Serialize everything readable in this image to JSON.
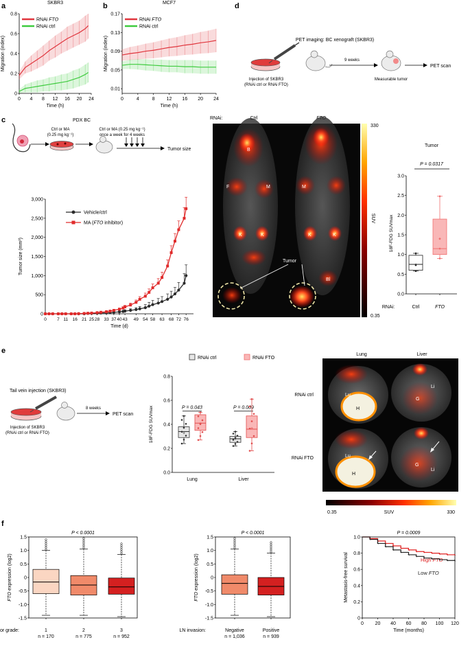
{
  "panels": {
    "a": {
      "letter": "a",
      "chart_data": {
        "type": "line",
        "title": "SKBR3",
        "xlabel": "Time (h)",
        "ylabel": "Migration (index)",
        "xlim": [
          0,
          24
        ],
        "ylim": [
          0,
          0.8
        ],
        "xticks": [
          0,
          4,
          8,
          12,
          16,
          20,
          24
        ],
        "yticks": [
          0,
          0.2,
          0.4,
          0.6,
          0.8
        ],
        "x": [
          0,
          2,
          4,
          6,
          8,
          10,
          12,
          14,
          16,
          18,
          20,
          22,
          23
        ],
        "series": [
          {
            "name": "RNAi FTO",
            "color": "#e0353d",
            "values": [
              0.18,
              0.26,
              0.3,
              0.34,
              0.38,
              0.43,
              0.47,
              0.51,
              0.55,
              0.58,
              0.61,
              0.65,
              0.68
            ],
            "err": [
              0.04,
              0.06,
              0.08,
              0.09,
              0.1,
              0.1,
              0.11,
              0.11,
              0.12,
              0.12,
              0.12,
              0.13,
              0.13
            ]
          },
          {
            "name": "RNAi ctrl",
            "color": "#3ecb3e",
            "values": [
              0.02,
              0.05,
              0.06,
              0.07,
              0.08,
              0.09,
              0.1,
              0.11,
              0.12,
              0.14,
              0.16,
              0.19,
              0.21
            ],
            "err": [
              0.02,
              0.04,
              0.05,
              0.06,
              0.06,
              0.07,
              0.07,
              0.08,
              0.08,
              0.09,
              0.09,
              0.1,
              0.1
            ]
          }
        ]
      }
    },
    "b": {
      "letter": "b",
      "chart_data": {
        "type": "line",
        "title": "MCF7",
        "xlabel": "Time (h)",
        "ylabel": "Migration (index)",
        "xlim": [
          0,
          24
        ],
        "ylim": [
          0,
          0.17
        ],
        "xticks": [
          0,
          4,
          8,
          12,
          16,
          20,
          24
        ],
        "yticks": [
          0.01,
          0.05,
          0.09,
          0.13,
          0.17
        ],
        "x": [
          0,
          2,
          4,
          6,
          8,
          10,
          12,
          14,
          16,
          18,
          20,
          22,
          24
        ],
        "series": [
          {
            "name": "RNAi FTO",
            "color": "#e0353d",
            "values": [
              0.082,
              0.085,
              0.087,
              0.09,
              0.092,
              0.095,
              0.098,
              0.1,
              0.103,
              0.105,
              0.108,
              0.11,
              0.113
            ],
            "err": [
              0.012,
              0.014,
              0.015,
              0.016,
              0.017,
              0.018,
              0.019,
              0.02,
              0.021,
              0.022,
              0.023,
              0.024,
              0.025
            ]
          },
          {
            "name": "RNAi ctrl",
            "color": "#3ecb3e",
            "values": [
              0.06,
              0.062,
              0.062,
              0.061,
              0.06,
              0.059,
              0.058,
              0.058,
              0.057,
              0.057,
              0.056,
              0.056,
              0.056
            ],
            "err": [
              0.008,
              0.01,
              0.011,
              0.012,
              0.012,
              0.013,
              0.013,
              0.013,
              0.014,
              0.014,
              0.014,
              0.014,
              0.014
            ]
          }
        ]
      }
    },
    "d": {
      "letter": "d",
      "title": "PET imaging: BC xenograft (SKBR3)",
      "injection": [
        "Injection of SKBR3",
        "(RNAi ctrl or RNAi FTO)"
      ],
      "interval": "9 weeks",
      "outcome": "Measurable tumor",
      "endpoint": "PET scan"
    },
    "c": {
      "letter": "c",
      "schematic": {
        "title": "PDX BC",
        "dose1": [
          "Ctrl or MA",
          "(0.25 mg kg⁻¹)"
        ],
        "dose2": [
          "Ctrl or MA (0.25 mg kg⁻¹)",
          "once a week for 4 weeks"
        ],
        "endpoint": "Tumor size"
      },
      "chart_data": {
        "type": "line",
        "xlabel": "Time (d)",
        "ylabel": "Tumor size (mm³)",
        "xlim": [
          0,
          80
        ],
        "ylim": [
          0,
          3000
        ],
        "xticks": [
          0,
          7,
          11,
          16,
          21,
          25,
          28,
          33,
          37,
          40,
          43,
          49,
          54,
          58,
          63,
          68,
          72,
          76
        ],
        "yticks": [
          0,
          500,
          1000,
          1500,
          2000,
          2500,
          3000
        ],
        "ytick_labels": [
          "0",
          "500",
          "1,000",
          "1,500",
          "2,000",
          "2,500",
          "3,000"
        ],
        "series": [
          {
            "name": "Vehicle/ctrl",
            "color": "#2b2b2b",
            "marker": "circle",
            "x": [
              0,
              2,
              4,
              7,
              9,
              11,
              14,
              16,
              18,
              21,
              23,
              25,
              28,
              30,
              33,
              35,
              37,
              40,
              42,
              43,
              46,
              49,
              51,
              54,
              56,
              58,
              61,
              63,
              66,
              68,
              70,
              72,
              75,
              76
            ],
            "values": [
              0,
              0,
              0,
              0,
              0,
              0,
              0,
              0,
              0,
              0,
              10,
              12,
              15,
              20,
              25,
              30,
              40,
              50,
              60,
              70,
              90,
              110,
              130,
              160,
              200,
              240,
              280,
              320,
              380,
              440,
              520,
              620,
              800,
              1000
            ],
            "err": [
              0,
              0,
              0,
              0,
              0,
              0,
              0,
              0,
              0,
              0,
              5,
              5,
              8,
              10,
              12,
              15,
              20,
              25,
              30,
              35,
              40,
              50,
              60,
              80,
              100,
              110,
              120,
              130,
              140,
              150,
              170,
              200,
              250,
              280
            ]
          },
          {
            "name": "MA (FTO inhibitor)",
            "color": "#e02b2b",
            "marker": "square",
            "x": [
              0,
              2,
              4,
              7,
              9,
              11,
              14,
              16,
              18,
              21,
              23,
              25,
              28,
              30,
              33,
              35,
              37,
              40,
              42,
              43,
              46,
              49,
              51,
              54,
              56,
              58,
              61,
              63,
              66,
              68,
              70,
              72,
              75,
              76
            ],
            "values": [
              0,
              0,
              0,
              0,
              0,
              0,
              0,
              0,
              5,
              10,
              15,
              20,
              30,
              40,
              55,
              70,
              90,
              120,
              150,
              180,
              230,
              300,
              380,
              460,
              560,
              680,
              800,
              950,
              1250,
              1600,
              1900,
              2200,
              2500,
              2750
            ],
            "err": [
              0,
              0,
              0,
              0,
              0,
              0,
              0,
              0,
              2,
              4,
              6,
              8,
              10,
              12,
              15,
              20,
              25,
              30,
              35,
              40,
              50,
              60,
              70,
              80,
              90,
              100,
              120,
              140,
              160,
              180,
              200,
              230,
              280,
              300
            ]
          }
        ]
      },
      "pet": {
        "rnai_label": "RNAi:",
        "ctrl_label": "Ctrl",
        "fto_label": "FTO",
        "organs": [
          "B",
          "F",
          "M",
          "K",
          "K",
          "M",
          "K",
          "K",
          "Bl"
        ],
        "tumor_label": "Tumor",
        "colorbar_max": "330",
        "colorbar_min": "0.35",
        "colorbar_label": "SUV"
      },
      "tumor_chart": {
        "chart_data": {
          "type": "box",
          "title": "Tumor",
          "annotation": "P = 0.0317",
          "ylabel": "18F-FDG SUVmax",
          "ylim": [
            0,
            3.0
          ],
          "yticks": [
            0,
            0.5,
            1.0,
            1.5,
            2.0,
            2.5,
            3.0
          ],
          "xlabel_prefix": "RNAi:",
          "categories": [
            "Ctrl",
            "FTO"
          ],
          "boxes": [
            {
              "category": "Ctrl",
              "min": 0.58,
              "q1": 0.6,
              "median": 0.75,
              "q3": 0.98,
              "max": 1.03,
              "mean": 0.75,
              "points": [
                0.58,
                0.73,
                1.03
              ]
            },
            {
              "category": "FTO",
              "min": 0.9,
              "q1": 1.0,
              "median": 1.15,
              "q3": 1.9,
              "max": 2.48,
              "mean": 1.4,
              "points": [
                0.9,
                1.15,
                1.4,
                2.48
              ]
            }
          ]
        }
      }
    },
    "e": {
      "letter": "e",
      "schematic": {
        "title": "Tail vein injection (SKBR3)",
        "injection": [
          "Injection of SKBR3",
          "(RNAi ctrl or RNAi FTO)"
        ],
        "interval": "8 weeks",
        "endpoint": "PET scan"
      },
      "chart_data": {
        "type": "box",
        "ylabel": "18F-FDG SUVmax",
        "ylim": [
          0,
          0.8
        ],
        "yticks": [
          0,
          0.2,
          0.4,
          0.6,
          0.8
        ],
        "categories": [
          "Lung",
          "Liver"
        ],
        "annotations": [
          "P = 0.043",
          "P = 0.009"
        ],
        "legend": [
          "RNAi ctrl",
          "RNAi FTO"
        ],
        "boxes": [
          {
            "group": "Lung",
            "series": "RNAi ctrl",
            "min": 0.24,
            "q1": 0.29,
            "median": 0.34,
            "q3": 0.38,
            "max": 0.47,
            "mean": 0.33
          },
          {
            "group": "Lung",
            "series": "RNAi FTO",
            "min": 0.27,
            "q1": 0.35,
            "median": 0.41,
            "q3": 0.48,
            "max": 0.5,
            "mean": 0.41
          },
          {
            "group": "Liver",
            "series": "RNAi ctrl",
            "min": 0.22,
            "q1": 0.25,
            "median": 0.28,
            "q3": 0.3,
            "max": 0.34,
            "mean": 0.28
          },
          {
            "group": "Liver",
            "series": "RNAi FTO",
            "min": 0.18,
            "q1": 0.29,
            "median": 0.36,
            "q3": 0.47,
            "max": 0.61,
            "mean": 0.37
          }
        ]
      },
      "pet": {
        "col1": "Lung",
        "col2": "Liver",
        "row1": "RNAi ctrl",
        "row2": "RNAi FTO",
        "organs": [
          "Lu",
          "H",
          "G",
          "Li",
          "Lu",
          "H",
          "G",
          "Li"
        ],
        "colorbar_min": "0.35",
        "colorbar_label": "SUV",
        "colorbar_max": "330"
      }
    },
    "f": {
      "letter": "f",
      "grade": {
        "chart_data": {
          "type": "box",
          "annotation": "P < 0.0001",
          "ylabel": "FTO expression (log2)",
          "ylim": [
            -1.5,
            1.5
          ],
          "yticks": [
            -1.5,
            -1.0,
            -0.5,
            0,
            0.5,
            1.0,
            1.5
          ],
          "xlabel_prefix": "Tumor grade:",
          "categories": [
            "1",
            "2",
            "3"
          ],
          "n_labels": [
            "n = 170",
            "n = 775",
            "n = 952"
          ],
          "boxes": [
            {
              "category": "1",
              "whisker_low": -1.4,
              "q1": -0.6,
              "median": -0.17,
              "q3": 0.3,
              "whisker_high": 1.0
            },
            {
              "category": "2",
              "whisker_low": -1.4,
              "q1": -0.65,
              "median": -0.28,
              "q3": 0.07,
              "whisker_high": 1.05
            },
            {
              "category": "3",
              "whisker_low": -1.45,
              "q1": -0.62,
              "median": -0.35,
              "q3": -0.02,
              "whisker_high": 0.85
            }
          ]
        }
      },
      "ln": {
        "chart_data": {
          "type": "box",
          "annotation": "P < 0.0001",
          "ylabel": "FTO expression (log2)",
          "ylim": [
            -1.5,
            1.5
          ],
          "yticks": [
            -1.5,
            -1.0,
            -0.5,
            0,
            0.5,
            1.0,
            1.5
          ],
          "xlabel_prefix": "LN invasion:",
          "categories": [
            "Negative",
            "Positive"
          ],
          "n_labels": [
            "n = 1,036",
            "n = 939"
          ],
          "boxes": [
            {
              "category": "Negative",
              "whisker_low": -1.4,
              "q1": -0.62,
              "median": -0.22,
              "q3": 0.1,
              "whisker_high": 1.05
            },
            {
              "category": "Positive",
              "whisker_low": -1.45,
              "q1": -0.65,
              "median": -0.33,
              "q3": 0.0,
              "whisker_high": 0.9
            }
          ]
        }
      },
      "survival": {
        "chart_data": {
          "type": "line",
          "annotation": "P = 0.0009",
          "xlabel": "Time (months)",
          "ylabel": "Metastasis-free survival",
          "xlim": [
            0,
            120
          ],
          "ylim": [
            0,
            1.0
          ],
          "xticks": [
            0,
            20,
            40,
            60,
            80,
            100,
            120
          ],
          "yticks": [
            0,
            0.2,
            0.4,
            0.6,
            0.8,
            1.0
          ],
          "series": [
            {
              "name": "High FTO",
              "color": "#e02020",
              "x": [
                0,
                10,
                20,
                30,
                40,
                50,
                60,
                70,
                80,
                90,
                100,
                110,
                120
              ],
              "values": [
                1.0,
                0.98,
                0.95,
                0.92,
                0.89,
                0.86,
                0.84,
                0.82,
                0.81,
                0.8,
                0.79,
                0.78,
                0.78
              ]
            },
            {
              "name": "Low FTO",
              "color": "#222222",
              "x": [
                0,
                10,
                20,
                30,
                40,
                50,
                60,
                70,
                80,
                90,
                100,
                110,
                120
              ],
              "values": [
                1.0,
                0.97,
                0.92,
                0.88,
                0.84,
                0.81,
                0.78,
                0.76,
                0.74,
                0.73,
                0.72,
                0.71,
                0.71
              ]
            }
          ]
        }
      }
    }
  }
}
